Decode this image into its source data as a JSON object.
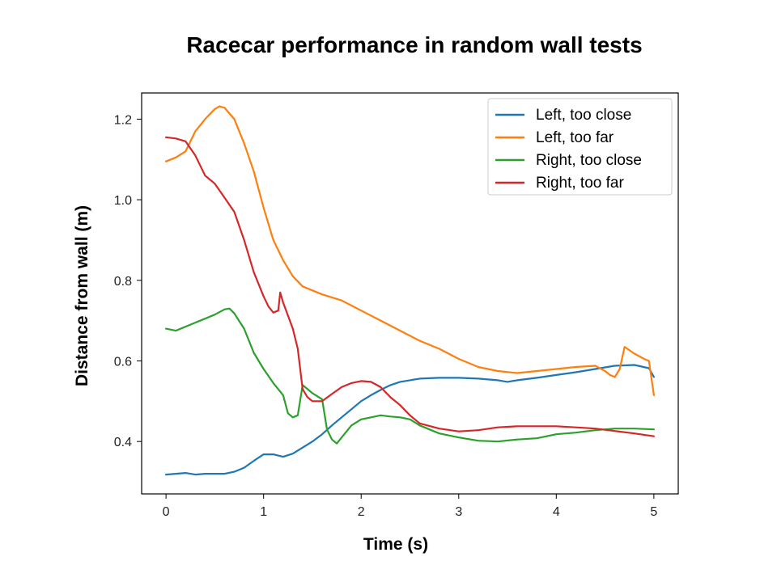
{
  "chart_data": {
    "type": "line",
    "title": "Racecar performance in random wall tests",
    "xlabel": "Time (s)",
    "ylabel": "Distance from wall (m)",
    "xlim": [
      -0.25,
      5.25
    ],
    "ylim": [
      0.27,
      1.265
    ],
    "xticks": [
      0,
      1,
      2,
      3,
      4,
      5
    ],
    "yticks": [
      0.4,
      0.6,
      0.8,
      1.0,
      1.2
    ],
    "xtick_labels": [
      "0",
      "1",
      "2",
      "3",
      "4",
      "5"
    ],
    "ytick_labels": [
      "0.4",
      "0.6",
      "0.8",
      "1.0",
      "1.2"
    ],
    "grid": false,
    "legend_position": "top-right",
    "series": [
      {
        "name": "Left, too close",
        "color": "#1f77b4",
        "points": [
          [
            0,
            0.318
          ],
          [
            0.1,
            0.32
          ],
          [
            0.2,
            0.322
          ],
          [
            0.3,
            0.318
          ],
          [
            0.4,
            0.32
          ],
          [
            0.5,
            0.32
          ],
          [
            0.6,
            0.32
          ],
          [
            0.7,
            0.325
          ],
          [
            0.8,
            0.335
          ],
          [
            0.9,
            0.352
          ],
          [
            1.0,
            0.368
          ],
          [
            1.1,
            0.368
          ],
          [
            1.2,
            0.362
          ],
          [
            1.3,
            0.37
          ],
          [
            1.4,
            0.385
          ],
          [
            1.5,
            0.4
          ],
          [
            1.6,
            0.418
          ],
          [
            1.7,
            0.44
          ],
          [
            1.8,
            0.46
          ],
          [
            1.9,
            0.48
          ],
          [
            2.0,
            0.5
          ],
          [
            2.1,
            0.515
          ],
          [
            2.2,
            0.528
          ],
          [
            2.3,
            0.54
          ],
          [
            2.4,
            0.548
          ],
          [
            2.5,
            0.552
          ],
          [
            2.6,
            0.556
          ],
          [
            2.8,
            0.558
          ],
          [
            3.0,
            0.558
          ],
          [
            3.2,
            0.556
          ],
          [
            3.4,
            0.552
          ],
          [
            3.5,
            0.548
          ],
          [
            3.6,
            0.552
          ],
          [
            3.8,
            0.558
          ],
          [
            4.0,
            0.565
          ],
          [
            4.2,
            0.572
          ],
          [
            4.4,
            0.58
          ],
          [
            4.6,
            0.588
          ],
          [
            4.8,
            0.59
          ],
          [
            4.95,
            0.582
          ],
          [
            5.0,
            0.56
          ]
        ]
      },
      {
        "name": "Left, too far",
        "color": "#ff7f0e",
        "points": [
          [
            0,
            1.095
          ],
          [
            0.1,
            1.105
          ],
          [
            0.2,
            1.12
          ],
          [
            0.3,
            1.17
          ],
          [
            0.4,
            1.2
          ],
          [
            0.5,
            1.225
          ],
          [
            0.55,
            1.232
          ],
          [
            0.6,
            1.228
          ],
          [
            0.7,
            1.2
          ],
          [
            0.8,
            1.14
          ],
          [
            0.9,
            1.07
          ],
          [
            1.0,
            0.98
          ],
          [
            1.1,
            0.9
          ],
          [
            1.2,
            0.85
          ],
          [
            1.3,
            0.81
          ],
          [
            1.4,
            0.785
          ],
          [
            1.5,
            0.775
          ],
          [
            1.6,
            0.765
          ],
          [
            1.8,
            0.75
          ],
          [
            2.0,
            0.725
          ],
          [
            2.2,
            0.7
          ],
          [
            2.4,
            0.675
          ],
          [
            2.6,
            0.65
          ],
          [
            2.8,
            0.63
          ],
          [
            3.0,
            0.605
          ],
          [
            3.2,
            0.585
          ],
          [
            3.4,
            0.575
          ],
          [
            3.6,
            0.57
          ],
          [
            3.8,
            0.575
          ],
          [
            4.0,
            0.58
          ],
          [
            4.2,
            0.585
          ],
          [
            4.4,
            0.588
          ],
          [
            4.5,
            0.575
          ],
          [
            4.55,
            0.565
          ],
          [
            4.6,
            0.56
          ],
          [
            4.65,
            0.58
          ],
          [
            4.7,
            0.635
          ],
          [
            4.8,
            0.618
          ],
          [
            4.9,
            0.605
          ],
          [
            4.95,
            0.6
          ],
          [
            5.0,
            0.515
          ]
        ]
      },
      {
        "name": "Right, too close",
        "color": "#2ca02c",
        "points": [
          [
            0,
            0.68
          ],
          [
            0.1,
            0.675
          ],
          [
            0.2,
            0.685
          ],
          [
            0.3,
            0.695
          ],
          [
            0.4,
            0.705
          ],
          [
            0.5,
            0.715
          ],
          [
            0.6,
            0.728
          ],
          [
            0.65,
            0.73
          ],
          [
            0.7,
            0.718
          ],
          [
            0.8,
            0.68
          ],
          [
            0.9,
            0.62
          ],
          [
            1.0,
            0.58
          ],
          [
            1.1,
            0.545
          ],
          [
            1.2,
            0.515
          ],
          [
            1.25,
            0.47
          ],
          [
            1.3,
            0.46
          ],
          [
            1.35,
            0.465
          ],
          [
            1.4,
            0.54
          ],
          [
            1.5,
            0.52
          ],
          [
            1.6,
            0.505
          ],
          [
            1.65,
            0.43
          ],
          [
            1.7,
            0.405
          ],
          [
            1.75,
            0.395
          ],
          [
            1.8,
            0.41
          ],
          [
            1.9,
            0.44
          ],
          [
            2.0,
            0.455
          ],
          [
            2.1,
            0.46
          ],
          [
            2.2,
            0.465
          ],
          [
            2.3,
            0.462
          ],
          [
            2.4,
            0.46
          ],
          [
            2.5,
            0.455
          ],
          [
            2.6,
            0.44
          ],
          [
            2.8,
            0.42
          ],
          [
            3.0,
            0.41
          ],
          [
            3.2,
            0.402
          ],
          [
            3.4,
            0.4
          ],
          [
            3.6,
            0.405
          ],
          [
            3.8,
            0.408
          ],
          [
            4.0,
            0.418
          ],
          [
            4.2,
            0.422
          ],
          [
            4.4,
            0.428
          ],
          [
            4.6,
            0.432
          ],
          [
            4.8,
            0.432
          ],
          [
            5.0,
            0.43
          ]
        ]
      },
      {
        "name": "Right, too far",
        "color": "#d62728",
        "points": [
          [
            0,
            1.155
          ],
          [
            0.1,
            1.152
          ],
          [
            0.2,
            1.145
          ],
          [
            0.3,
            1.11
          ],
          [
            0.4,
            1.06
          ],
          [
            0.5,
            1.04
          ],
          [
            0.6,
            1.005
          ],
          [
            0.7,
            0.97
          ],
          [
            0.8,
            0.9
          ],
          [
            0.9,
            0.82
          ],
          [
            1.0,
            0.76
          ],
          [
            1.05,
            0.735
          ],
          [
            1.1,
            0.72
          ],
          [
            1.15,
            0.725
          ],
          [
            1.17,
            0.77
          ],
          [
            1.2,
            0.745
          ],
          [
            1.3,
            0.68
          ],
          [
            1.35,
            0.63
          ],
          [
            1.4,
            0.53
          ],
          [
            1.45,
            0.51
          ],
          [
            1.5,
            0.5
          ],
          [
            1.6,
            0.5
          ],
          [
            1.7,
            0.518
          ],
          [
            1.8,
            0.535
          ],
          [
            1.9,
            0.545
          ],
          [
            2.0,
            0.55
          ],
          [
            2.1,
            0.548
          ],
          [
            2.2,
            0.535
          ],
          [
            2.3,
            0.51
          ],
          [
            2.4,
            0.49
          ],
          [
            2.5,
            0.465
          ],
          [
            2.6,
            0.445
          ],
          [
            2.8,
            0.432
          ],
          [
            3.0,
            0.425
          ],
          [
            3.2,
            0.428
          ],
          [
            3.4,
            0.435
          ],
          [
            3.6,
            0.438
          ],
          [
            3.8,
            0.438
          ],
          [
            4.0,
            0.438
          ],
          [
            4.2,
            0.435
          ],
          [
            4.4,
            0.432
          ],
          [
            4.6,
            0.426
          ],
          [
            4.8,
            0.42
          ],
          [
            5.0,
            0.413
          ]
        ]
      }
    ]
  }
}
